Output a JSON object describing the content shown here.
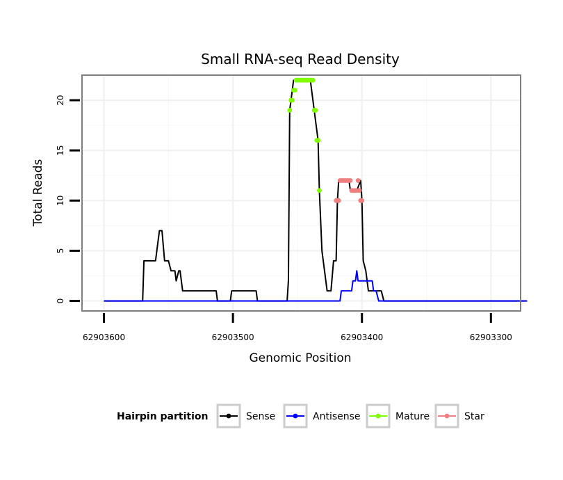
{
  "chart_data": {
    "type": "line",
    "title": "Small RNA-seq Read Density",
    "xlabel": "Genomic Position",
    "ylabel": "Total Reads",
    "xlim": [
      62903617,
      62903277
    ],
    "ylim": [
      -1,
      22.5
    ],
    "x_reversed": true,
    "grid": true,
    "legend_position": "bottom",
    "xticks": [
      62903600,
      62903500,
      62903400,
      62903300
    ],
    "xtick_labels": [
      "62903600",
      "62903500",
      "62903400",
      "62903300"
    ],
    "yticks": [
      0,
      5,
      10,
      15,
      20
    ],
    "ytick_labels": [
      "0",
      "5",
      "10",
      "15",
      "20"
    ],
    "legend": {
      "title": "Hairpin partition",
      "entries": [
        {
          "name": "Sense",
          "color": "#000000"
        },
        {
          "name": "Antisense",
          "color": "#0000ff"
        },
        {
          "name": "Mature",
          "color": "#7fff00"
        },
        {
          "name": "Star",
          "color": "#f08080"
        }
      ]
    },
    "series": [
      {
        "name": "Sense",
        "color": "#000000",
        "x": [
          62903600,
          62903570,
          62903569,
          62903560,
          62903558,
          62903557,
          62903555,
          62903553,
          62903552,
          62903550,
          62903548,
          62903545,
          62903544,
          62903542,
          62903541,
          62903539,
          62903537,
          62903536,
          62903513,
          62903512,
          62903502,
          62903501,
          62903482,
          62903481,
          62903458,
          62903457,
          62903456,
          62903453,
          62903450,
          62903443,
          62903441,
          62903440,
          62903437,
          62903434,
          62903433,
          62903431,
          62903429,
          62903427,
          62903425,
          62903424,
          62903422,
          62903420,
          62903419,
          62903418,
          62903410,
          62903409,
          62903406,
          62903404,
          62903401,
          62903400,
          62903399,
          62903397,
          62903395,
          62903393,
          62903391,
          62903390,
          62903389,
          62903387,
          62903385,
          62903383,
          62903380,
          62903377,
          62903376,
          62903370,
          62903300,
          62903272
        ],
        "y": [
          0,
          0,
          4,
          4,
          6,
          7,
          7,
          4,
          4,
          4,
          3,
          3,
          2,
          3,
          3,
          1,
          1,
          1,
          1,
          0,
          0,
          1,
          1,
          0,
          0,
          2,
          19,
          22,
          22,
          22,
          22,
          22,
          19,
          16,
          11,
          5,
          3,
          1,
          1,
          1,
          4,
          4,
          10,
          12,
          12,
          11,
          11,
          11,
          12,
          10,
          4,
          3,
          1,
          1,
          1,
          1,
          1,
          1,
          1,
          0,
          0,
          0,
          0,
          0,
          0,
          0
        ]
      },
      {
        "name": "Antisense",
        "color": "#0000ff",
        "x": [
          62903600,
          62903417,
          62903416,
          62903408,
          62903407,
          62903405,
          62903404,
          62903403,
          62903402,
          62903392,
          62903391,
          62903390,
          62903389,
          62903387,
          62903386,
          62903300,
          62903272
        ],
        "y": [
          0,
          0,
          1,
          1,
          2,
          2,
          3,
          2,
          2,
          2,
          1,
          1,
          1,
          0,
          0,
          0,
          0
        ]
      },
      {
        "name": "Mature",
        "color": "#7fff00",
        "x": [
          62903456,
          62903455,
          62903454,
          62903453,
          62903452,
          62903451,
          62903450,
          62903449,
          62903448,
          62903447,
          62903446,
          62903445,
          62903444,
          62903443,
          62903442,
          62903441,
          62903440,
          62903439,
          62903438,
          62903437,
          62903436,
          62903435,
          62903434,
          62903433
        ],
        "y": [
          19,
          20,
          20,
          21,
          21,
          22,
          22,
          22,
          22,
          22,
          22,
          22,
          22,
          22,
          22,
          22,
          22,
          22,
          22,
          19,
          19,
          16,
          16,
          11
        ]
      },
      {
        "name": "Star",
        "color": "#f08080",
        "x": [
          62903420,
          62903419,
          62903418,
          62903417,
          62903416,
          62903415,
          62903414,
          62903413,
          62903412,
          62903411,
          62903410,
          62903409,
          62903408,
          62903407,
          62903406,
          62903405,
          62903404,
          62903403,
          62903402,
          62903401,
          62903400
        ],
        "y": [
          10,
          10,
          10,
          12,
          12,
          12,
          12,
          12,
          12,
          12,
          12,
          12,
          11,
          11,
          11,
          11,
          11,
          12,
          11,
          10,
          10
        ]
      }
    ]
  }
}
